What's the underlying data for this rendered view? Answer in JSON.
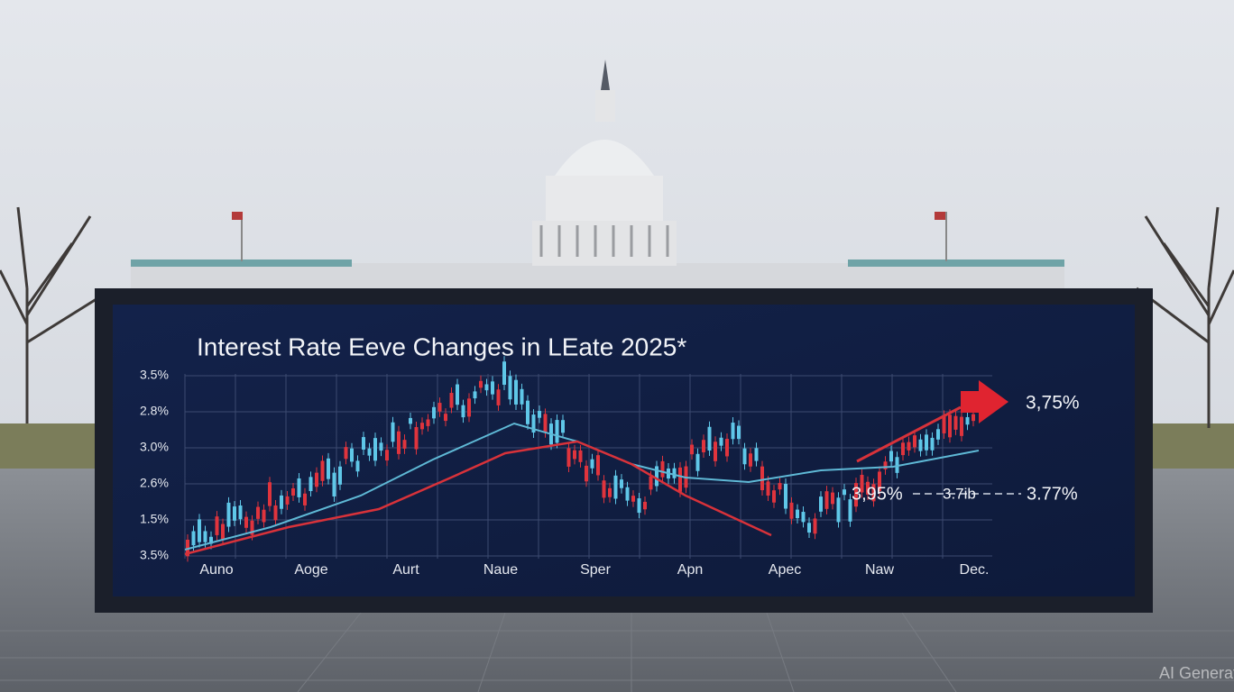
{
  "board": {
    "title": "Interest Rate Eeve Changes in LEate 2025*",
    "y_labels": [
      "3.5%",
      "2.8%",
      "3.0%",
      "2.6%",
      "1.5%",
      "3.5%"
    ],
    "x_labels": [
      "Auno",
      "Aoge",
      "Aurt",
      "Naue",
      "Sper",
      "Apn",
      "Apec",
      "Naw",
      "Dec."
    ],
    "annotations": {
      "top_right": "3,75%",
      "mid_left": "3,95%",
      "mid_center": "3.7ib",
      "mid_right": "3.77%"
    }
  },
  "watermark": "AI Generated"
}
